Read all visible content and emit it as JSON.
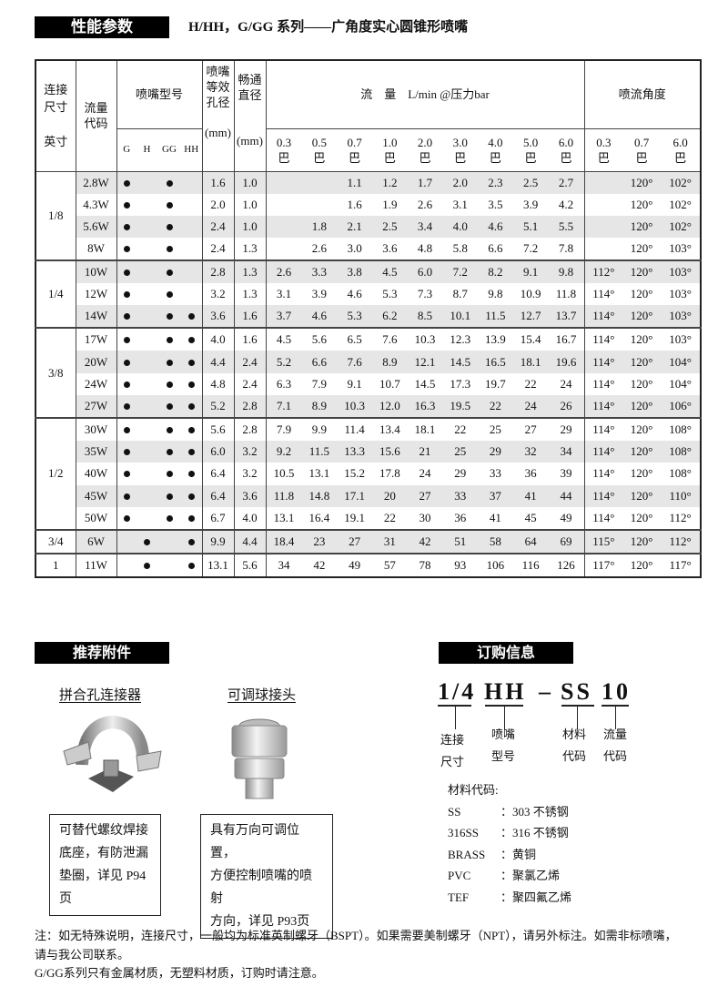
{
  "header": {
    "section_title": "性能参数",
    "subtitle": "H/HH，G/GG 系列——广角度实心圆锥形喷嘴"
  },
  "table": {
    "headers": {
      "size": [
        "连接",
        "尺寸",
        "英寸"
      ],
      "code": [
        "流量",
        "代码"
      ],
      "model": "喷嘴型号",
      "model_types": [
        "G",
        "H",
        "GG",
        "HH"
      ],
      "orifice": [
        "喷嘴",
        "等效",
        "孔径",
        "(mm)"
      ],
      "passage": [
        "畅通",
        "直径",
        "(mm)"
      ],
      "flow": "流　量　L/min @压力bar",
      "flow_pressures": [
        "0.3",
        "0.5",
        "0.7",
        "1.0",
        "2.0",
        "3.0",
        "4.0",
        "5.0",
        "6.0"
      ],
      "angle": "喷流角度",
      "angle_pressures": [
        "0.3",
        "0.7",
        "6.0"
      ],
      "bar_unit": "巴"
    },
    "groups": [
      {
        "size": "1/8",
        "rows": [
          {
            "code": "2.8W",
            "types": [
              1,
              0,
              1,
              0
            ],
            "orifice": "1.6",
            "passage": "1.0",
            "flow": [
              "",
              "",
              "1.1",
              "1.2",
              "1.7",
              "2.0",
              "2.3",
              "2.5",
              "2.7"
            ],
            "angle": [
              "",
              "120°",
              "102°"
            ]
          },
          {
            "code": "4.3W",
            "types": [
              1,
              0,
              1,
              0
            ],
            "orifice": "2.0",
            "passage": "1.0",
            "flow": [
              "",
              "",
              "1.6",
              "1.9",
              "2.6",
              "3.1",
              "3.5",
              "3.9",
              "4.2"
            ],
            "angle": [
              "",
              "120°",
              "102°"
            ]
          },
          {
            "code": "5.6W",
            "types": [
              1,
              0,
              1,
              0
            ],
            "orifice": "2.4",
            "passage": "1.0",
            "flow": [
              "",
              "1.8",
              "2.1",
              "2.5",
              "3.4",
              "4.0",
              "4.6",
              "5.1",
              "5.5"
            ],
            "angle": [
              "",
              "120°",
              "102°"
            ]
          },
          {
            "code": "8W",
            "types": [
              1,
              0,
              1,
              0
            ],
            "orifice": "2.4",
            "passage": "1.3",
            "flow": [
              "",
              "2.6",
              "3.0",
              "3.6",
              "4.8",
              "5.8",
              "6.6",
              "7.2",
              "7.8"
            ],
            "angle": [
              "",
              "120°",
              "103°"
            ]
          }
        ]
      },
      {
        "size": "1/4",
        "rows": [
          {
            "code": "10W",
            "types": [
              1,
              0,
              1,
              0
            ],
            "orifice": "2.8",
            "passage": "1.3",
            "flow": [
              "2.6",
              "3.3",
              "3.8",
              "4.5",
              "6.0",
              "7.2",
              "8.2",
              "9.1",
              "9.8"
            ],
            "angle": [
              "112°",
              "120°",
              "103°"
            ]
          },
          {
            "code": "12W",
            "types": [
              1,
              0,
              1,
              0
            ],
            "orifice": "3.2",
            "passage": "1.3",
            "flow": [
              "3.1",
              "3.9",
              "4.6",
              "5.3",
              "7.3",
              "8.7",
              "9.8",
              "10.9",
              "11.8"
            ],
            "angle": [
              "114°",
              "120°",
              "103°"
            ]
          },
          {
            "code": "14W",
            "types": [
              1,
              0,
              1,
              1
            ],
            "orifice": "3.6",
            "passage": "1.6",
            "flow": [
              "3.7",
              "4.6",
              "5.3",
              "6.2",
              "8.5",
              "10.1",
              "11.5",
              "12.7",
              "13.7"
            ],
            "angle": [
              "114°",
              "120°",
              "103°"
            ]
          }
        ]
      },
      {
        "size": "3/8",
        "rows": [
          {
            "code": "17W",
            "types": [
              1,
              0,
              1,
              1
            ],
            "orifice": "4.0",
            "passage": "1.6",
            "flow": [
              "4.5",
              "5.6",
              "6.5",
              "7.6",
              "10.3",
              "12.3",
              "13.9",
              "15.4",
              "16.7"
            ],
            "angle": [
              "114°",
              "120°",
              "103°"
            ]
          },
          {
            "code": "20W",
            "types": [
              1,
              0,
              1,
              1
            ],
            "orifice": "4.4",
            "passage": "2.4",
            "flow": [
              "5.2",
              "6.6",
              "7.6",
              "8.9",
              "12.1",
              "14.5",
              "16.5",
              "18.1",
              "19.6"
            ],
            "angle": [
              "114°",
              "120°",
              "104°"
            ]
          },
          {
            "code": "24W",
            "types": [
              1,
              0,
              1,
              1
            ],
            "orifice": "4.8",
            "passage": "2.4",
            "flow": [
              "6.3",
              "7.9",
              "9.1",
              "10.7",
              "14.5",
              "17.3",
              "19.7",
              "22",
              "24"
            ],
            "angle": [
              "114°",
              "120°",
              "104°"
            ]
          },
          {
            "code": "27W",
            "types": [
              1,
              0,
              1,
              1
            ],
            "orifice": "5.2",
            "passage": "2.8",
            "flow": [
              "7.1",
              "8.9",
              "10.3",
              "12.0",
              "16.3",
              "19.5",
              "22",
              "24",
              "26"
            ],
            "angle": [
              "114°",
              "120°",
              "106°"
            ]
          }
        ]
      },
      {
        "size": "1/2",
        "rows": [
          {
            "code": "30W",
            "types": [
              1,
              0,
              1,
              1
            ],
            "orifice": "5.6",
            "passage": "2.8",
            "flow": [
              "7.9",
              "9.9",
              "11.4",
              "13.4",
              "18.1",
              "22",
              "25",
              "27",
              "29"
            ],
            "angle": [
              "114°",
              "120°",
              "108°"
            ]
          },
          {
            "code": "35W",
            "types": [
              1,
              0,
              1,
              1
            ],
            "orifice": "6.0",
            "passage": "3.2",
            "flow": [
              "9.2",
              "11.5",
              "13.3",
              "15.6",
              "21",
              "25",
              "29",
              "32",
              "34"
            ],
            "angle": [
              "114°",
              "120°",
              "108°"
            ]
          },
          {
            "code": "40W",
            "types": [
              1,
              0,
              1,
              1
            ],
            "orifice": "6.4",
            "passage": "3.2",
            "flow": [
              "10.5",
              "13.1",
              "15.2",
              "17.8",
              "24",
              "29",
              "33",
              "36",
              "39"
            ],
            "angle": [
              "114°",
              "120°",
              "108°"
            ]
          },
          {
            "code": "45W",
            "types": [
              1,
              0,
              1,
              1
            ],
            "orifice": "6.4",
            "passage": "3.6",
            "flow": [
              "11.8",
              "14.8",
              "17.1",
              "20",
              "27",
              "33",
              "37",
              "41",
              "44"
            ],
            "angle": [
              "114°",
              "120°",
              "110°"
            ]
          },
          {
            "code": "50W",
            "types": [
              1,
              0,
              1,
              1
            ],
            "orifice": "6.7",
            "passage": "4.0",
            "flow": [
              "13.1",
              "16.4",
              "19.1",
              "22",
              "30",
              "36",
              "41",
              "45",
              "49"
            ],
            "angle": [
              "114°",
              "120°",
              "112°"
            ]
          }
        ]
      },
      {
        "size": "3/4",
        "rows": [
          {
            "code": "6W",
            "types": [
              0,
              1,
              0,
              1
            ],
            "orifice": "9.9",
            "passage": "4.4",
            "flow": [
              "18.4",
              "23",
              "27",
              "31",
              "42",
              "51",
              "58",
              "64",
              "69"
            ],
            "angle": [
              "115°",
              "120°",
              "112°"
            ]
          }
        ]
      },
      {
        "size": "1",
        "rows": [
          {
            "code": "11W",
            "types": [
              0,
              1,
              0,
              1
            ],
            "orifice": "13.1",
            "passage": "5.6",
            "flow": [
              "34",
              "42",
              "49",
              "57",
              "78",
              "93",
              "106",
              "116",
              "126"
            ],
            "angle": [
              "117°",
              "120°",
              "117°"
            ]
          }
        ]
      }
    ]
  },
  "accessories": {
    "section_title": "推荐附件",
    "items": [
      {
        "name": "拼合孔连接器",
        "desc": [
          "可替代螺纹焊接",
          "底座，有防泄漏",
          "垫圈，详见 P94页"
        ]
      },
      {
        "name": "可调球接头",
        "desc": [
          "具有万向可调位置，",
          "方便控制喷嘴的喷射",
          "方向，详见 P93页"
        ]
      }
    ]
  },
  "ordering": {
    "section_title": "订购信息",
    "code_parts": [
      "1/4",
      "HH",
      "–",
      "SS",
      "10"
    ],
    "labels": [
      [
        "连接",
        "尺寸"
      ],
      [
        "喷嘴",
        "型号"
      ],
      [
        "材料",
        "代码"
      ],
      [
        "流量",
        "代码"
      ]
    ],
    "materials_title": "材料代码:",
    "materials": [
      {
        "code": "SS",
        "sep": "：",
        "desc": "303 不锈钢"
      },
      {
        "code": "316SS",
        "sep": "：",
        "desc": "316 不锈钢"
      },
      {
        "code": "BRASS",
        "sep": "：",
        "desc": "黄铜"
      },
      {
        "code": "PVC",
        "sep": "：",
        "desc": "聚氯乙烯"
      },
      {
        "code": "TEF",
        "sep": "：",
        "desc": "聚四氟乙烯"
      }
    ]
  },
  "notes": [
    "注：如无特殊说明，连接尺寸，一般均为标准英制螺牙（BSPT）。如果需要美制螺牙（NPT），请另外标注。如需非标喷嘴，",
    "请与我公司联系。",
    "G/GG系列只有金属材质，无塑料材质，订购时请注意。"
  ]
}
